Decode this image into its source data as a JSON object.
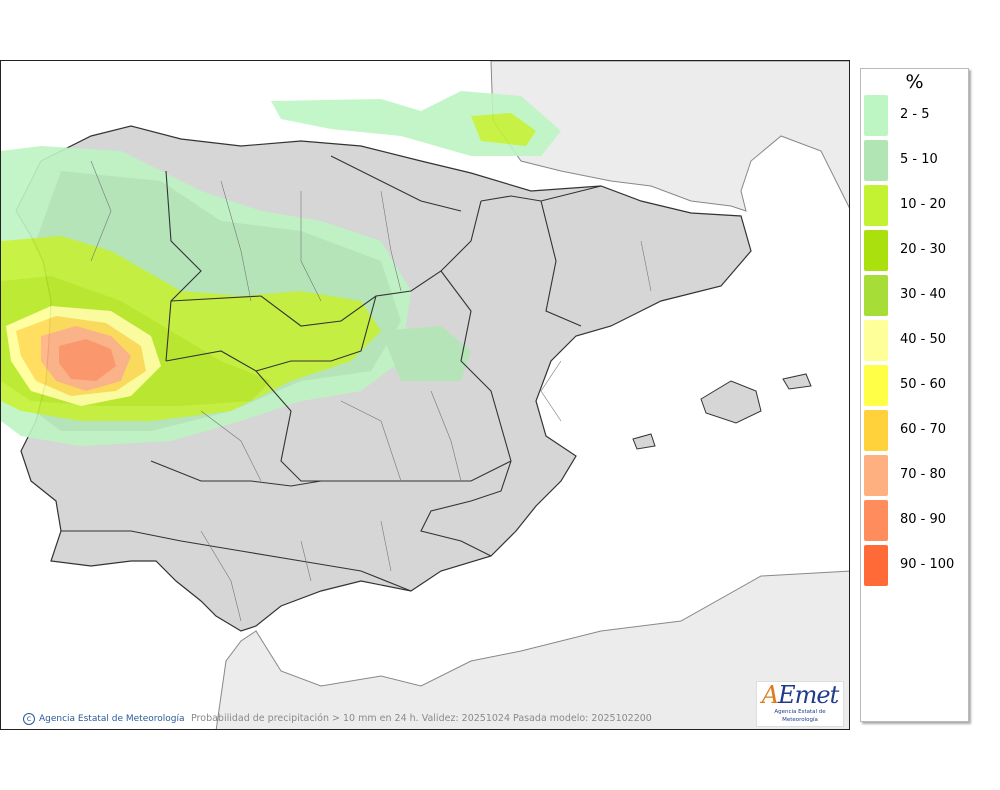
{
  "legend": {
    "title": "%",
    "items": [
      {
        "label": "2 - 5",
        "color": "#bdf5c3"
      },
      {
        "label": "5 - 10",
        "color": "#b1e6b4"
      },
      {
        "label": "10 - 20",
        "color": "#c3f233"
      },
      {
        "label": "20 - 30",
        "color": "#abe00f"
      },
      {
        "label": "30 - 40",
        "color": "#a6dd36"
      },
      {
        "label": "40 - 50",
        "color": "#ffff99"
      },
      {
        "label": "50 - 60",
        "color": "#ffff48"
      },
      {
        "label": "60 - 70",
        "color": "#ffd23c"
      },
      {
        "label": "70 - 80",
        "color": "#ffb080"
      },
      {
        "label": "80 - 90",
        "color": "#ff8c5c"
      },
      {
        "label": "90 - 100",
        "color": "#ff6a36"
      }
    ]
  },
  "footer": {
    "credit": "Agencia Estatal de Meteorología",
    "caption": "Probabilidad de precipitación > 10 mm en 24 h. Validez: 20251024 Pasada modelo: 2025102200"
  },
  "logo": {
    "wordmark": "AEmet",
    "subtitle": "Agencia Estatal de Meteorología"
  },
  "colors": {
    "land": "#d6d6d6",
    "sea": "#ffffff",
    "foreign_land": "#ececec",
    "border": "#333333"
  }
}
